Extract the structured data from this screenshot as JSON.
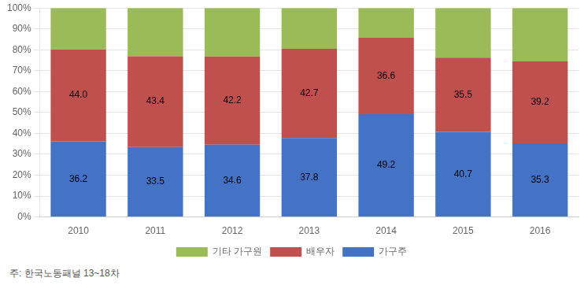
{
  "chart_data": {
    "type": "bar",
    "stacked": true,
    "categories": [
      "2010",
      "2011",
      "2012",
      "2013",
      "2014",
      "2015",
      "2016"
    ],
    "series": [
      {
        "name": "가구주",
        "color": "#4472C4",
        "values": [
          36.2,
          33.5,
          34.6,
          37.8,
          49.2,
          40.7,
          35.3
        ],
        "data_labels": true
      },
      {
        "name": "배우자",
        "color": "#C0504D",
        "values": [
          44.0,
          43.4,
          42.2,
          42.7,
          36.6,
          35.5,
          39.2
        ],
        "data_labels": true,
        "value_labels": [
          "44.0",
          "43.4",
          "42.2",
          "42.7",
          "36.6",
          "35.5",
          "39.2"
        ]
      },
      {
        "name": "기타 가구원",
        "color": "#9BBB59",
        "values": [
          19.8,
          23.1,
          23.2,
          19.5,
          14.2,
          23.8,
          25.5
        ],
        "data_labels": false
      }
    ],
    "ylim": [
      0,
      100
    ],
    "yticks": [
      {
        "value": 0,
        "label": "0%"
      },
      {
        "value": 10,
        "label": "10%"
      },
      {
        "value": 20,
        "label": "20%"
      },
      {
        "value": 30,
        "label": "30%"
      },
      {
        "value": 40,
        "label": "40%"
      },
      {
        "value": 50,
        "label": "50%"
      },
      {
        "value": 60,
        "label": "60%"
      },
      {
        "value": 70,
        "label": "70%"
      },
      {
        "value": 80,
        "label": "80%"
      },
      {
        "value": 90,
        "label": "90%"
      },
      {
        "value": 100,
        "label": "100%"
      }
    ],
    "grid": true,
    "legend": "bottom",
    "annotations": [
      "주: 한국노동패널 13~18차"
    ]
  }
}
